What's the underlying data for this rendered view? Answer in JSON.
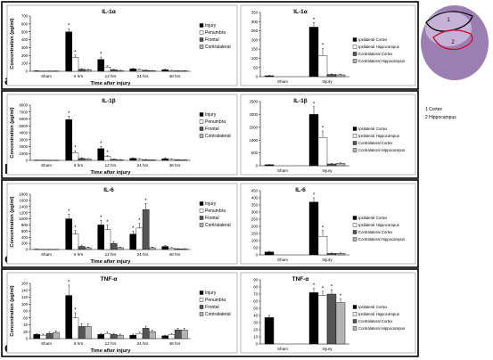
{
  "panels": [
    {
      "letter": "a",
      "left": {
        "title": "IL-1α",
        "ylabel": "Concentration (pg/ml)",
        "xlabel": "Time after injury",
        "ylim": [
          0,
          700
        ],
        "yticks": [
          0,
          100,
          200,
          300,
          400,
          500,
          600,
          700
        ],
        "categories": [
          "Sham",
          "6 hrs",
          "12 hrs",
          "24 hrs",
          "48 hrs"
        ],
        "legend": [
          "Injury",
          "Penumbra",
          "Frontal",
          "Contralateral"
        ],
        "values": [
          [
            5,
            2,
            3,
            3
          ],
          [
            500,
            175,
            25,
            20
          ],
          [
            150,
            55,
            20,
            10
          ],
          [
            30,
            20,
            12,
            8
          ],
          [
            20,
            10,
            5,
            5
          ]
        ],
        "errors": [
          [
            3,
            2,
            2,
            2
          ],
          [
            40,
            30,
            8,
            6
          ],
          [
            30,
            15,
            5,
            4
          ],
          [
            8,
            6,
            4,
            3
          ],
          [
            6,
            4,
            2,
            2
          ]
        ],
        "stars": [
          [
            0,
            0,
            0,
            0
          ],
          [
            1,
            1,
            0,
            0
          ],
          [
            1,
            0,
            0,
            0
          ],
          [
            0,
            0,
            0,
            0
          ],
          [
            0,
            0,
            0,
            0
          ]
        ]
      },
      "right": {
        "title": "IL-1α",
        "ylim": [
          0,
          350
        ],
        "yticks": [
          0,
          50,
          100,
          150,
          200,
          250,
          300,
          350
        ],
        "categories": [
          "Sham",
          "Injury"
        ],
        "legend": [
          "Ipsilateral Cortex",
          "Ipsilateral Hippocampus",
          "Contralateral Cortex",
          "Contralateral Hippocampus"
        ],
        "values": [
          [
            5,
            0,
            0,
            0
          ],
          [
            270,
            115,
            12,
            10
          ]
        ],
        "errors": [
          [
            2,
            0,
            0,
            0
          ],
          [
            25,
            40,
            3,
            3
          ]
        ],
        "stars": [
          [
            0,
            0,
            0,
            0
          ],
          [
            1,
            1,
            0,
            0
          ]
        ]
      }
    },
    {
      "letter": "b",
      "left": {
        "title": "IL-1β",
        "ylabel": "Concentration (pg/ml)",
        "xlabel": "Time after injury",
        "ylim": [
          0,
          8000
        ],
        "yticks": [
          0,
          1000,
          2000,
          3000,
          4000,
          5000,
          6000,
          7000,
          8000
        ],
        "categories": [
          "Sham",
          "6 hrs",
          "12 hrs",
          "24 hrs",
          "48 hrs"
        ],
        "legend": [
          "Injury",
          "Penumbra",
          "Frontal",
          "Contralateral"
        ],
        "values": [
          [
            40,
            30,
            20,
            20
          ],
          [
            5900,
            1100,
            300,
            200
          ],
          [
            1700,
            550,
            150,
            100
          ],
          [
            300,
            200,
            100,
            80
          ],
          [
            250,
            150,
            80,
            60
          ]
        ],
        "errors": [
          [
            20,
            15,
            10,
            10
          ],
          [
            500,
            300,
            80,
            60
          ],
          [
            300,
            150,
            50,
            40
          ],
          [
            80,
            60,
            40,
            30
          ],
          [
            70,
            50,
            30,
            20
          ]
        ],
        "stars": [
          [
            0,
            0,
            0,
            0
          ],
          [
            1,
            1,
            0,
            0
          ],
          [
            1,
            1,
            0,
            0
          ],
          [
            0,
            0,
            0,
            0
          ],
          [
            0,
            0,
            0,
            0
          ]
        ]
      },
      "right": {
        "title": "IL-1β",
        "ylim": [
          0,
          2500
        ],
        "yticks": [
          0,
          500,
          1000,
          1500,
          2000,
          2500
        ],
        "categories": [
          "Sham",
          "Injury"
        ],
        "legend": [
          "Ipsilateral Cortex",
          "Ipsilateral Hippocampus",
          "Contralateral Cortex",
          "Contralateral Hippocampus"
        ],
        "values": [
          [
            40,
            0,
            0,
            0
          ],
          [
            2000,
            1100,
            70,
            90
          ]
        ],
        "errors": [
          [
            10,
            0,
            0,
            0
          ],
          [
            300,
            250,
            20,
            20
          ]
        ],
        "stars": [
          [
            0,
            0,
            0,
            0
          ],
          [
            1,
            1,
            0,
            0
          ]
        ]
      }
    },
    {
      "letter": "c",
      "left": {
        "title": "IL-6",
        "ylabel": "Concentration (pg/ml)",
        "xlabel": "Time after injury",
        "ylim": [
          0,
          1800
        ],
        "yticks": [
          0,
          200,
          400,
          600,
          800,
          1000,
          1200,
          1400,
          1600,
          1800
        ],
        "categories": [
          "Sham",
          "6 hrs",
          "12 hrs",
          "24 hrs",
          "48 hrs"
        ],
        "legend": [
          "Injury",
          "Penumbra",
          "Frontal",
          "Contralateral"
        ],
        "values": [
          [
            10,
            5,
            5,
            5
          ],
          [
            1000,
            500,
            100,
            60
          ],
          [
            800,
            650,
            200,
            60
          ],
          [
            500,
            700,
            1300,
            60
          ],
          [
            100,
            50,
            20,
            20
          ]
        ],
        "errors": [
          [
            5,
            3,
            3,
            3
          ],
          [
            150,
            120,
            30,
            20
          ],
          [
            150,
            150,
            60,
            20
          ],
          [
            100,
            150,
            200,
            20
          ],
          [
            30,
            20,
            10,
            10
          ]
        ],
        "stars": [
          [
            0,
            0,
            0,
            0
          ],
          [
            1,
            1,
            0,
            0
          ],
          [
            1,
            1,
            0,
            0
          ],
          [
            1,
            1,
            1,
            0
          ],
          [
            0,
            0,
            0,
            0
          ]
        ]
      },
      "right": {
        "title": "IL-6",
        "ylim": [
          0,
          450
        ],
        "yticks": [
          0,
          50,
          100,
          150,
          200,
          250,
          300,
          350,
          400,
          450
        ],
        "categories": [
          "Sham",
          "Injury"
        ],
        "legend": [
          "Ipsilateral Cortex",
          "Ipsilateral Hippocampus",
          "Contralateral Cortex",
          "Contralateral Hippocampus"
        ],
        "values": [
          [
            20,
            0,
            0,
            0
          ],
          [
            370,
            130,
            10,
            10
          ]
        ],
        "errors": [
          [
            5,
            0,
            0,
            0
          ],
          [
            30,
            40,
            3,
            3
          ]
        ],
        "stars": [
          [
            0,
            0,
            0,
            0
          ],
          [
            1,
            1,
            0,
            0
          ]
        ]
      }
    },
    {
      "letter": "d",
      "left": {
        "title": "TNF-α",
        "ylabel": "Concentration (pg/ml)",
        "xlabel": "Time after injury",
        "ylim": [
          0,
          160
        ],
        "yticks": [
          0,
          20,
          40,
          60,
          80,
          100,
          120,
          140,
          160
        ],
        "categories": [
          "Sham",
          "6 hrs",
          "12 hrs",
          "24 hrs",
          "48 hrs"
        ],
        "legend": [
          "Injury",
          "Penumbra",
          "Frontal",
          "Contralateral"
        ],
        "values": [
          [
            12,
            10,
            15,
            18
          ],
          [
            125,
            60,
            35,
            35
          ],
          [
            12,
            15,
            12,
            10
          ],
          [
            10,
            15,
            30,
            20
          ],
          [
            8,
            12,
            25,
            25
          ]
        ],
        "errors": [
          [
            3,
            3,
            4,
            4
          ],
          [
            30,
            15,
            8,
            8
          ],
          [
            3,
            4,
            3,
            3
          ],
          [
            3,
            4,
            6,
            5
          ],
          [
            2,
            3,
            5,
            5
          ]
        ],
        "stars": [
          [
            0,
            0,
            0,
            0
          ],
          [
            1,
            1,
            0,
            0
          ],
          [
            0,
            0,
            0,
            0
          ],
          [
            0,
            0,
            0,
            0
          ],
          [
            0,
            0,
            0,
            0
          ]
        ]
      },
      "right": {
        "title": "TNF-α",
        "ylim": [
          0,
          90
        ],
        "yticks": [
          0,
          10,
          20,
          30,
          40,
          50,
          60,
          70,
          80,
          90
        ],
        "categories": [
          "Sham",
          "Injury"
        ],
        "legend": [
          "Ipsilateral Cortex",
          "Ipsilateral Hippocampus",
          "Contralateral Cortex",
          "Contralateral Hippocampus"
        ],
        "values": [
          [
            37,
            0,
            0,
            0
          ],
          [
            72,
            68,
            70,
            58
          ]
        ],
        "errors": [
          [
            3,
            0,
            0,
            0
          ],
          [
            6,
            6,
            6,
            5
          ]
        ],
        "stars": [
          [
            0,
            0,
            0,
            0
          ],
          [
            1,
            1,
            1,
            1
          ]
        ]
      }
    }
  ],
  "brain_labels": [
    "1 Cortex",
    "2 Hippocampus"
  ],
  "brain_region_numbers": [
    "1",
    "2"
  ],
  "colors": {
    "s0": "#000000",
    "s1": "#ffffff",
    "s2": "#555555",
    "s3": "#b4b4b4"
  }
}
